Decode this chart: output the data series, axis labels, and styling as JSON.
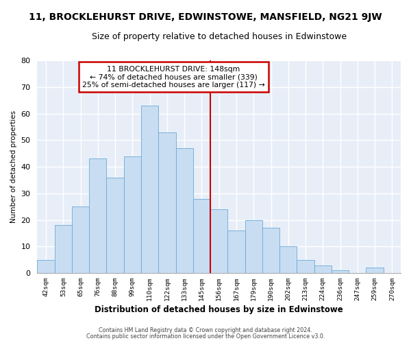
{
  "title": "11, BROCKLEHURST DRIVE, EDWINSTOWE, MANSFIELD, NG21 9JW",
  "subtitle": "Size of property relative to detached houses in Edwinstowe",
  "xlabel": "Distribution of detached houses by size in Edwinstowe",
  "ylabel": "Number of detached properties",
  "footer_line1": "Contains HM Land Registry data © Crown copyright and database right 2024.",
  "footer_line2": "Contains public sector information licensed under the Open Government Licence v3.0.",
  "bin_labels": [
    "42sqm",
    "53sqm",
    "65sqm",
    "76sqm",
    "88sqm",
    "99sqm",
    "110sqm",
    "122sqm",
    "133sqm",
    "145sqm",
    "156sqm",
    "167sqm",
    "179sqm",
    "190sqm",
    "202sqm",
    "213sqm",
    "224sqm",
    "236sqm",
    "247sqm",
    "259sqm",
    "270sqm"
  ],
  "bar_values": [
    5,
    18,
    25,
    43,
    36,
    44,
    63,
    53,
    47,
    28,
    24,
    16,
    20,
    17,
    10,
    5,
    3,
    1,
    0,
    2,
    0
  ],
  "bar_color": "#c8ddf2",
  "bar_edge_color": "#6aaad4",
  "vline_x_index": 9,
  "vline_color": "#cc0000",
  "annotation_title": "11 BROCKLEHURST DRIVE: 148sqm",
  "annotation_line1": "← 74% of detached houses are smaller (339)",
  "annotation_line2": "25% of semi-detached houses are larger (117) →",
  "annotation_box_color": "#ffffff",
  "annotation_box_edge": "#cc0000",
  "ylim": [
    0,
    80
  ],
  "yticks": [
    0,
    10,
    20,
    30,
    40,
    50,
    60,
    70,
    80
  ],
  "background_color": "#ffffff",
  "plot_bg_color": "#e8eef8",
  "grid_color": "#ffffff",
  "title_fontsize": 10,
  "subtitle_fontsize": 9
}
